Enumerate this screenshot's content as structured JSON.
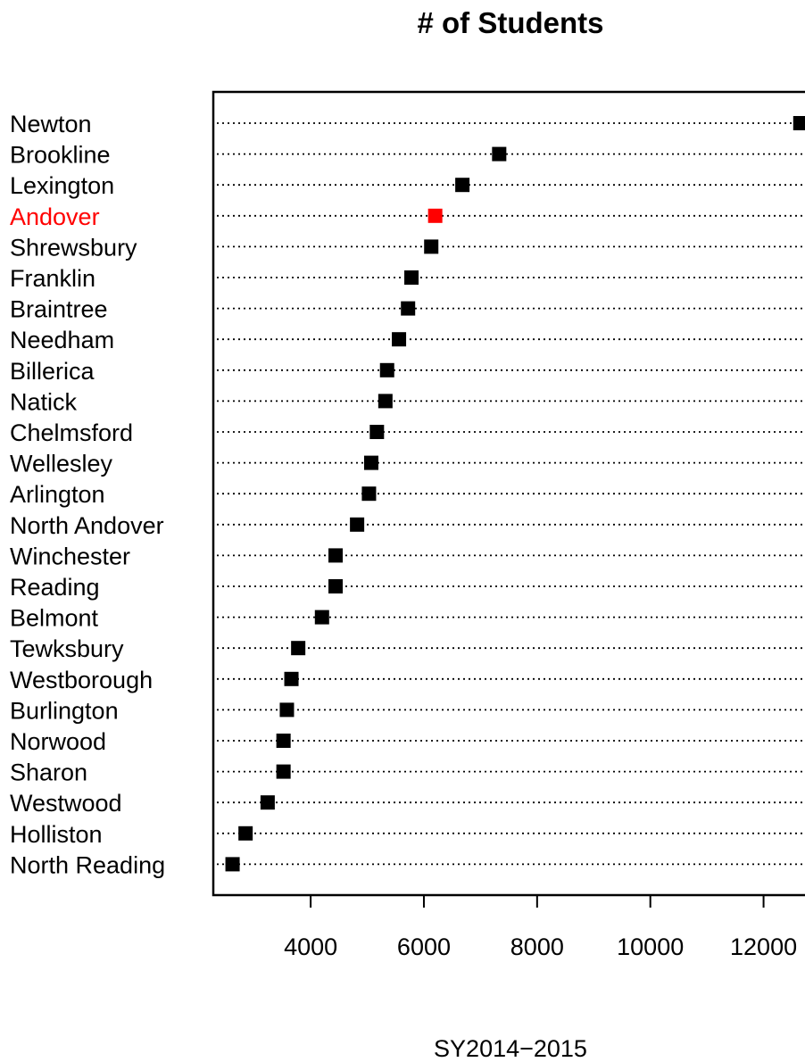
{
  "chart_data": {
    "type": "dot",
    "title": "# of Students",
    "xlabel": "SY2014−2015",
    "ylabel": "",
    "xlim": [
      2280,
      13000
    ],
    "xticks": [
      4000,
      6000,
      8000,
      10000,
      12000
    ],
    "xtick_labels": [
      "4000",
      "6000",
      "8000",
      "10000",
      "12000"
    ],
    "grid": "dotted horizontal guides per category",
    "highlight_color": "#ff0000",
    "default_color": "#000000",
    "categories": [
      "Newton",
      "Brookline",
      "Lexington",
      "Andover",
      "Shrewsbury",
      "Franklin",
      "Braintree",
      "Needham",
      "Billerica",
      "Natick",
      "Chelmsford",
      "Wellesley",
      "Arlington",
      "North Andover",
      "Winchester",
      "Reading",
      "Belmont",
      "Tewksbury",
      "Westborough",
      "Burlington",
      "Norwood",
      "Sharon",
      "Westwood",
      "Holliston",
      "North Reading"
    ],
    "values": [
      12650,
      7330,
      6680,
      6200,
      6130,
      5780,
      5720,
      5560,
      5350,
      5320,
      5170,
      5070,
      5030,
      4820,
      4440,
      4440,
      4200,
      3780,
      3660,
      3580,
      3520,
      3520,
      3240,
      2850,
      2620
    ],
    "highlight": [
      "Andover"
    ]
  }
}
